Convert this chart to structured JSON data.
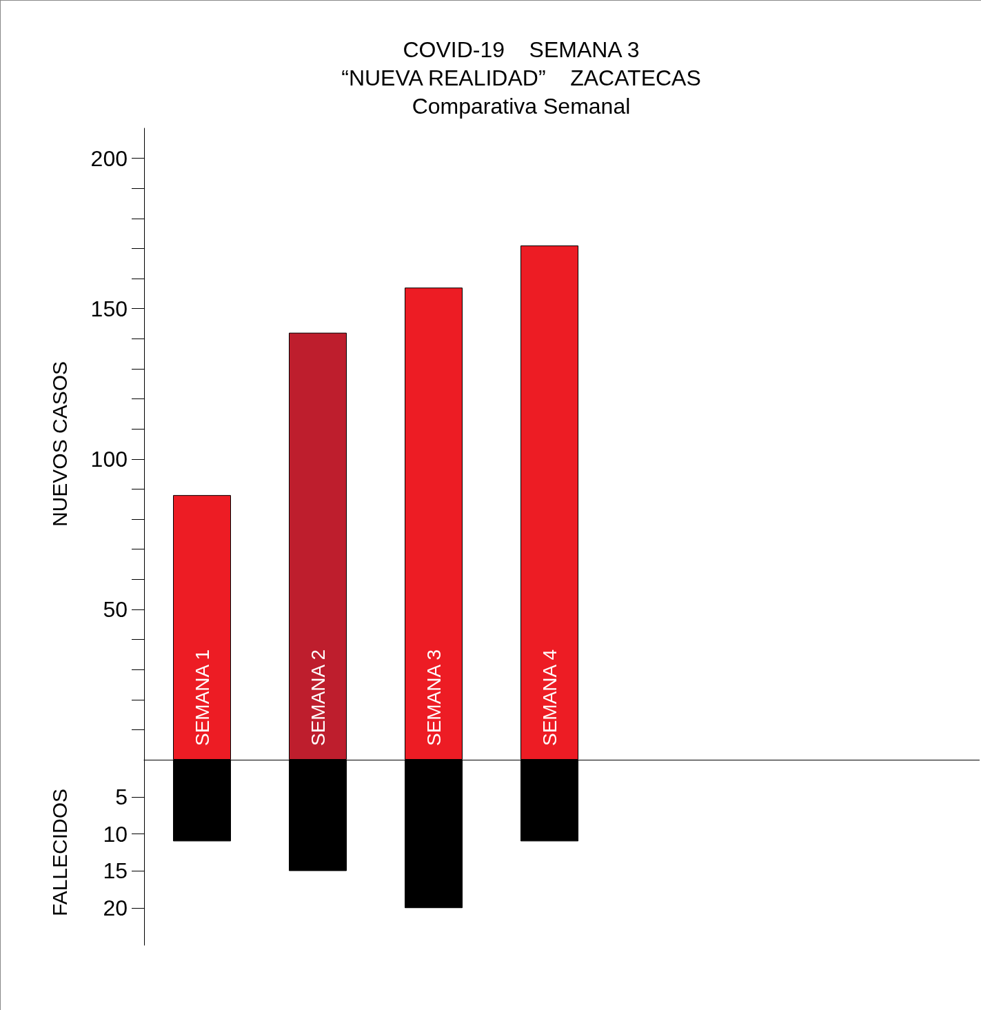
{
  "chart_data": [
    {
      "type": "bar",
      "title": "COVID-19    SEMANA 3\n“NUEVA REALIDAD”    ZACATECAS",
      "subtitle": "Comparativa Semanal",
      "ylabel": "NUEVOS CASOS",
      "categories": [
        "SEMANA 1",
        "SEMANA 2",
        "SEMANA 3",
        "SEMANA 4"
      ],
      "values": [
        88,
        142,
        157,
        171
      ],
      "colors": [
        "#ed1c24",
        "#be1e2d",
        "#ed1c24",
        "#ed1c24"
      ],
      "ylim": [
        0,
        210
      ],
      "yticks": [
        50,
        100,
        150,
        200
      ],
      "tick_labels": "y",
      "grid": false
    },
    {
      "type": "bar",
      "ylabel": "FALLECIDOS",
      "categories": [
        null,
        null,
        null,
        null
      ],
      "values": [
        11,
        15,
        20,
        11
      ],
      "color": "#000000",
      "ylim": [
        25,
        0
      ],
      "yticks": [
        5,
        10,
        15,
        20
      ],
      "tick_labels": "y",
      "grid": false
    }
  ]
}
